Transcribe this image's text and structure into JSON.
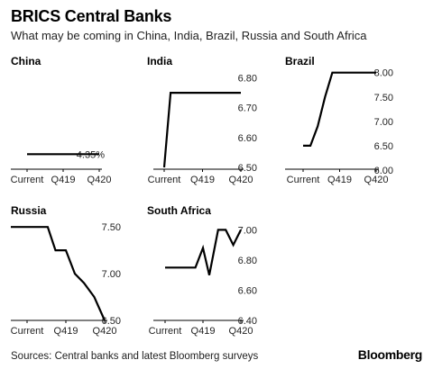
{
  "header": {
    "title": "BRICS Central Banks",
    "subtitle": "What may be coming in China, India, Brazil, Russia and South Africa"
  },
  "footer": {
    "source": "Sources: Central banks and latest Bloomberg surveys",
    "brand": "Bloomberg"
  },
  "colors": {
    "line": "#000000",
    "axis": "#000000",
    "text": "#222222"
  },
  "chart_data": [
    {
      "type": "line",
      "title": "China",
      "x": [
        0,
        1,
        2,
        3,
        4,
        5,
        6
      ],
      "values": [
        4.35,
        4.35,
        4.35,
        4.35,
        4.35,
        4.35,
        4.35
      ],
      "xticks": [
        {
          "x": 0,
          "label": "Current"
        },
        {
          "x": 3,
          "label": "Q419"
        },
        {
          "x": 6,
          "label": "Q420"
        }
      ],
      "yticks": [
        {
          "y": 4.35,
          "label": "4.35%"
        }
      ],
      "ylim": [
        4.3,
        4.6
      ],
      "xlabel": "",
      "ylabel": "",
      "grid": false
    },
    {
      "type": "line",
      "title": "India",
      "x": [
        0,
        0.5,
        1,
        2,
        3,
        4,
        5,
        6
      ],
      "values": [
        6.5,
        6.75,
        6.75,
        6.75,
        6.75,
        6.75,
        6.75,
        6.75
      ],
      "xticks": [
        {
          "x": 0,
          "label": "Current"
        },
        {
          "x": 3,
          "label": "Q419"
        },
        {
          "x": 6,
          "label": "Q420"
        }
      ],
      "yticks": [
        {
          "y": 6.5,
          "label": "6.50"
        },
        {
          "y": 6.6,
          "label": "6.60"
        },
        {
          "y": 6.7,
          "label": "6.70"
        },
        {
          "y": 6.8,
          "label": "6.80"
        }
      ],
      "ylim": [
        6.5,
        6.85
      ],
      "xlabel": "",
      "ylabel": "",
      "grid": false
    },
    {
      "type": "line",
      "title": "Brazil",
      "x": [
        0,
        0.6,
        1.2,
        1.8,
        2.4,
        3,
        4,
        5,
        6
      ],
      "values": [
        6.5,
        6.5,
        6.9,
        7.5,
        8.0,
        8.0,
        8.0,
        8.0,
        8.0
      ],
      "xticks": [
        {
          "x": 0,
          "label": "Current"
        },
        {
          "x": 3,
          "label": "Q419"
        },
        {
          "x": 6,
          "label": "Q420"
        }
      ],
      "yticks": [
        {
          "y": 6.0,
          "label": "6.00"
        },
        {
          "y": 6.5,
          "label": "6.50"
        },
        {
          "y": 7.0,
          "label": "7.00"
        },
        {
          "y": 7.5,
          "label": "7.50"
        },
        {
          "y": 8.0,
          "label": "8.00"
        }
      ],
      "ylim": [
        6.0,
        8.05
      ],
      "xlabel": "",
      "ylabel": "",
      "grid": false
    },
    {
      "type": "line",
      "title": "Russia",
      "x": [
        -1,
        0,
        0.8,
        1.6,
        2.2,
        3,
        3.7,
        4.4,
        5.2,
        6
      ],
      "values": [
        7.5,
        7.5,
        7.5,
        7.5,
        7.25,
        7.25,
        7.0,
        6.9,
        6.75,
        6.5
      ],
      "xticks": [
        {
          "x": 0,
          "label": "Current"
        },
        {
          "x": 3,
          "label": "Q419"
        },
        {
          "x": 6,
          "label": "Q420"
        }
      ],
      "yticks": [
        {
          "y": 6.5,
          "label": "6.50"
        },
        {
          "y": 7.0,
          "label": "7.00"
        },
        {
          "y": 7.5,
          "label": "7.50"
        }
      ],
      "ylim": [
        6.5,
        7.55
      ],
      "xlabel": "",
      "ylabel": "",
      "grid": false
    },
    {
      "type": "line",
      "title": "South Africa",
      "x": [
        0,
        0.6,
        1.2,
        1.8,
        2.4,
        3,
        3.5,
        4.2,
        4.8,
        5.4,
        6
      ],
      "values": [
        6.75,
        6.75,
        6.75,
        6.75,
        6.75,
        6.88,
        6.7,
        7.0,
        7.0,
        6.9,
        7.0
      ],
      "xticks": [
        {
          "x": 0,
          "label": "Current"
        },
        {
          "x": 3,
          "label": "Q419"
        },
        {
          "x": 6,
          "label": "Q420"
        }
      ],
      "yticks": [
        {
          "y": 6.4,
          "label": "6.40"
        },
        {
          "y": 6.6,
          "label": "6.60"
        },
        {
          "y": 6.8,
          "label": "6.80"
        },
        {
          "y": 7.0,
          "label": "7.00"
        }
      ],
      "ylim": [
        6.4,
        7.05
      ],
      "xlabel": "",
      "ylabel": "",
      "grid": false
    }
  ]
}
